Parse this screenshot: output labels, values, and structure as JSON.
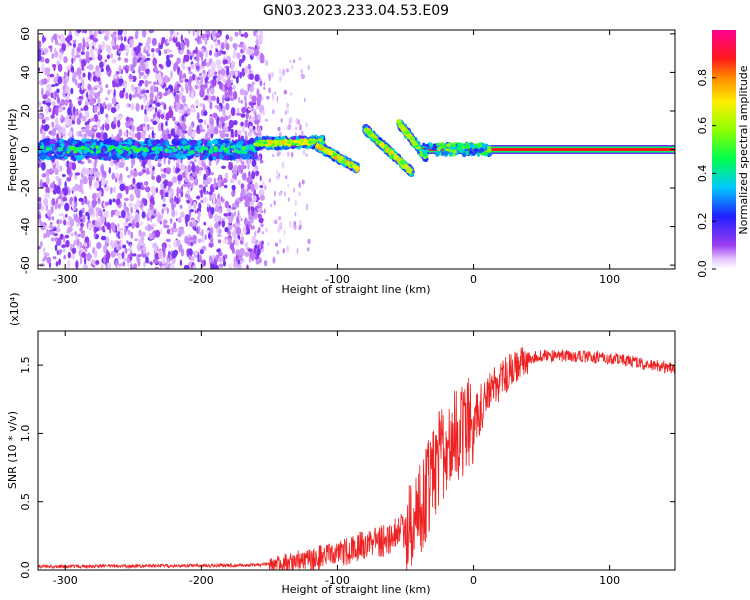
{
  "figure": {
    "title": "GN03.2023.233.04.53.E09"
  },
  "colors": {
    "snr_line": "#ee2222",
    "band_core": "#ff1e1e",
    "scatter": "#7a1ee6"
  },
  "chart_data": [
    {
      "type": "heatmap",
      "xlabel": "Height of straight line (km)",
      "ylabel": "Frequency (Hz)",
      "xlim": [
        -320,
        148
      ],
      "ylim": [
        -62,
        62
      ],
      "xticks": [
        -300,
        -200,
        -100,
        0,
        100
      ],
      "xtick_labels": [
        "-300",
        "-200",
        "-100",
        "0",
        "100"
      ],
      "yticks": [
        -60,
        -40,
        -20,
        0,
        20,
        40,
        60
      ],
      "ytick_labels": [
        "-60",
        "-40",
        "-20",
        "0",
        "20",
        "40",
        "60"
      ],
      "colorbar": {
        "label": "Normalized spectral amplitude",
        "range": [
          0,
          1
        ],
        "ticks": [
          0.0,
          0.2,
          0.4,
          0.6,
          0.8
        ],
        "tick_labels": [
          "0.0",
          "0.2",
          "0.4",
          "0.6",
          "0.8"
        ],
        "colormap": "rainbow"
      },
      "features": {
        "noise_scatter_x_range": [
          -320,
          -155
        ],
        "sparse_scatter_x_range": [
          -155,
          -120
        ],
        "main_band_hz": 0,
        "main_band_x_range": [
          -320,
          -160
        ],
        "rising_segment": {
          "x": [
            -160,
            -110
          ],
          "hz": [
            3,
            4
          ]
        },
        "falling_branch_1": {
          "x": [
            -115,
            -85
          ],
          "hz": [
            2,
            -10
          ]
        },
        "falling_branch_2": {
          "x": [
            -80,
            -45
          ],
          "hz": [
            11,
            -12
          ]
        },
        "falling_branch_3": {
          "x": [
            -55,
            -35
          ],
          "hz": [
            14,
            -4
          ]
        },
        "flat_tone": {
          "x": [
            -38,
            148
          ],
          "hz": 0,
          "amplitude": 1.0
        }
      }
    },
    {
      "type": "line",
      "xlabel": "Height of straight line (km)",
      "ylabel": "SNR (10 * v/v)",
      "y_multiplier": "(x10⁴)",
      "xlim": [
        -320,
        148
      ],
      "ylim": [
        0,
        1.75
      ],
      "xticks": [
        -300,
        -200,
        -100,
        0,
        100
      ],
      "xtick_labels": [
        "-300",
        "-200",
        "-100",
        "0",
        "100"
      ],
      "yticks": [
        0.0,
        0.5,
        1.0,
        1.5
      ],
      "ytick_labels": [
        "0.0",
        "0.5",
        "1.0",
        "1.5"
      ],
      "series": [
        {
          "x": [
            -320,
            -160,
            -140,
            -120,
            -100,
            -80,
            -60,
            -45,
            -35,
            -25,
            -15,
            -5,
            5,
            15,
            25,
            35,
            50,
            70,
            90,
            110,
            130,
            148
          ],
          "y": [
            0.02,
            0.03,
            0.05,
            0.08,
            0.12,
            0.18,
            0.24,
            0.33,
            0.55,
            0.82,
            0.97,
            1.05,
            1.18,
            1.32,
            1.44,
            1.52,
            1.55,
            1.55,
            1.54,
            1.52,
            1.48,
            1.46
          ]
        }
      ]
    }
  ]
}
